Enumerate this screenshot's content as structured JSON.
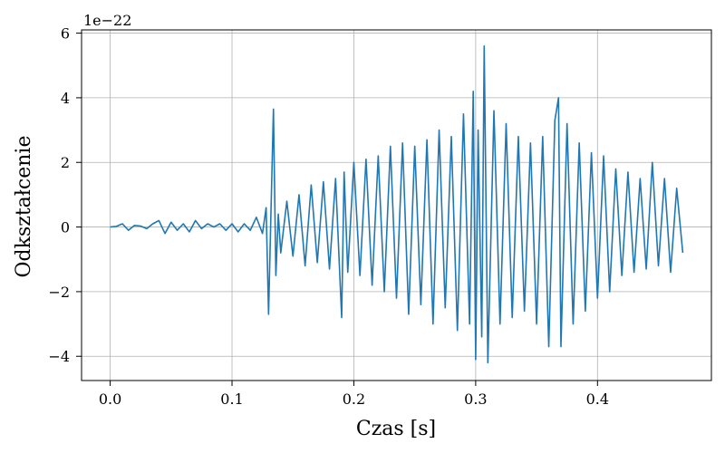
{
  "chart_data": {
    "type": "line",
    "title": "",
    "xlabel": "Czas [s]",
    "ylabel": "Odkształcenie",
    "y_offset_label": "1e−22",
    "xlim": [
      -0.0235,
      0.4935
    ],
    "ylim": [
      -4.75,
      6.1
    ],
    "grid": true,
    "line_color": "#1f77b4",
    "xticks": [
      0.0,
      0.1,
      0.2,
      0.3,
      0.4
    ],
    "xtick_labels": [
      "0.0",
      "0.1",
      "0.2",
      "0.3",
      "0.4"
    ],
    "yticks": [
      -4,
      -2,
      0,
      2,
      4,
      6
    ],
    "ytick_labels": [
      "−4",
      "−2",
      "0",
      "2",
      "4",
      "6"
    ],
    "series": [
      {
        "x": [
          0.0,
          0.005,
          0.01,
          0.015,
          0.02,
          0.025,
          0.03,
          0.035,
          0.04,
          0.045,
          0.05,
          0.055,
          0.06,
          0.065,
          0.07,
          0.075,
          0.08,
          0.085,
          0.09,
          0.095,
          0.1,
          0.105,
          0.11,
          0.115,
          0.12,
          0.125,
          0.128,
          0.13,
          0.132,
          0.134,
          0.136,
          0.138,
          0.14,
          0.145,
          0.15,
          0.155,
          0.16,
          0.165,
          0.17,
          0.175,
          0.18,
          0.185,
          0.19,
          0.192,
          0.195,
          0.2,
          0.205,
          0.21,
          0.215,
          0.22,
          0.225,
          0.23,
          0.235,
          0.24,
          0.245,
          0.25,
          0.255,
          0.26,
          0.265,
          0.27,
          0.275,
          0.28,
          0.285,
          0.29,
          0.295,
          0.298,
          0.3,
          0.302,
          0.305,
          0.307,
          0.31,
          0.315,
          0.32,
          0.325,
          0.33,
          0.335,
          0.34,
          0.345,
          0.35,
          0.355,
          0.36,
          0.365,
          0.368,
          0.37,
          0.375,
          0.38,
          0.385,
          0.39,
          0.395,
          0.4,
          0.405,
          0.41,
          0.415,
          0.42,
          0.425,
          0.43,
          0.435,
          0.44,
          0.445,
          0.45,
          0.455,
          0.46,
          0.465,
          0.47
        ],
        "y": [
          0.0,
          0.02,
          0.1,
          -0.1,
          0.05,
          0.03,
          -0.05,
          0.1,
          0.2,
          -0.2,
          0.15,
          -0.1,
          0.1,
          -0.15,
          0.2,
          -0.05,
          0.1,
          0.0,
          0.1,
          -0.1,
          0.1,
          -0.15,
          0.1,
          -0.1,
          0.3,
          -0.2,
          0.6,
          -2.7,
          0.5,
          3.65,
          -1.5,
          0.4,
          -0.8,
          0.8,
          -0.9,
          1.0,
          -1.2,
          1.3,
          -1.1,
          1.4,
          -1.3,
          1.5,
          -2.8,
          1.7,
          -1.4,
          2.0,
          -1.5,
          2.1,
          -1.8,
          2.2,
          -2.0,
          2.5,
          -2.2,
          2.6,
          -2.7,
          2.5,
          -2.4,
          2.7,
          -3.0,
          3.0,
          -2.5,
          2.8,
          -3.2,
          3.5,
          -3.0,
          4.2,
          -4.1,
          3.0,
          -3.4,
          5.6,
          -4.2,
          3.6,
          -3.0,
          3.2,
          -2.8,
          2.8,
          -2.6,
          2.6,
          -3.0,
          2.8,
          -3.7,
          3.3,
          4.0,
          -3.7,
          3.2,
          -3.0,
          2.6,
          -2.6,
          2.3,
          -2.2,
          2.2,
          -2.0,
          1.8,
          -1.5,
          1.7,
          -1.4,
          1.5,
          -1.3,
          2.0,
          -1.2,
          1.5,
          -1.4,
          1.2,
          -0.8
        ]
      }
    ]
  }
}
